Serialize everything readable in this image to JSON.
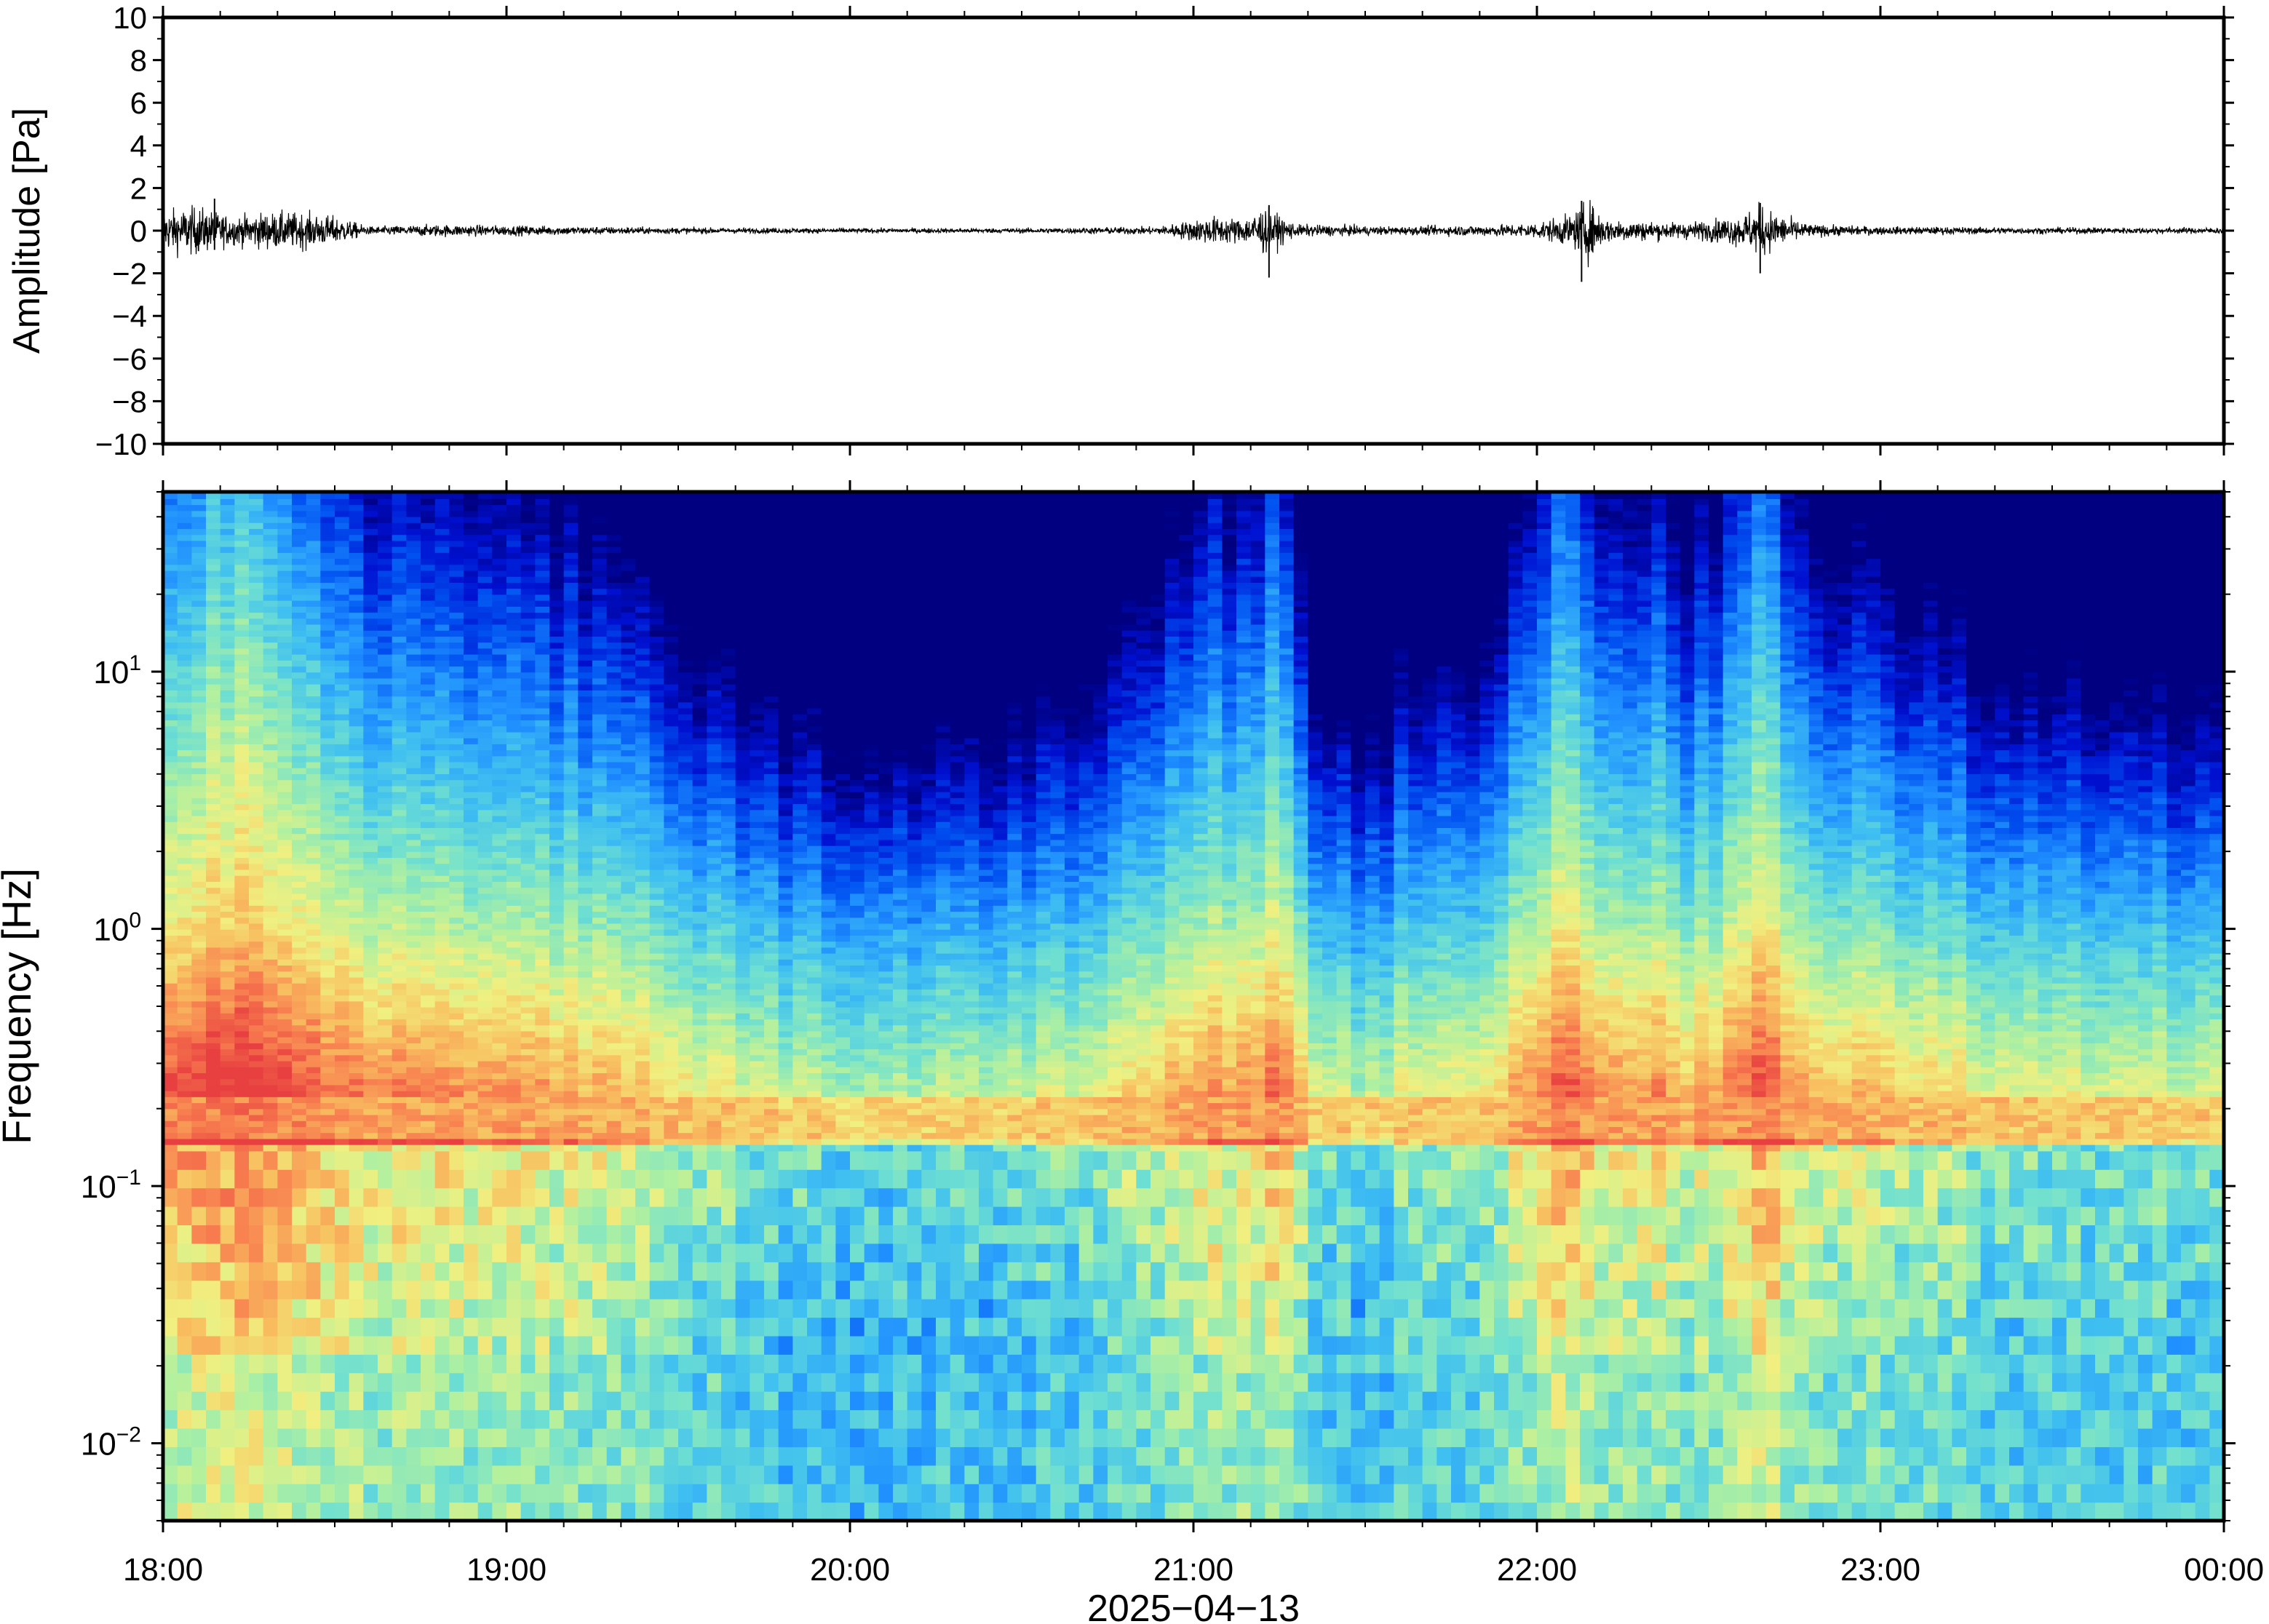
{
  "chart_data": [
    {
      "type": "line",
      "panel": "waveform",
      "ylabel": "Amplitude [Pa]",
      "xlabel": "",
      "ylim": [
        -10,
        10
      ],
      "yticks": [
        -10,
        -8,
        -6,
        -4,
        -2,
        0,
        2,
        4,
        6,
        8,
        10
      ],
      "ytick_labels": [
        "−10",
        "−8",
        "−6",
        "−4",
        "−2",
        "0",
        "2",
        "4",
        "6",
        "8",
        "10"
      ],
      "xlim_hours": [
        18,
        24
      ],
      "line_color": "#000000",
      "envelope": {
        "x_hours": [
          18.0,
          18.1,
          18.2,
          18.3,
          18.4,
          18.5,
          18.6,
          18.8,
          19.0,
          19.5,
          20.0,
          20.5,
          20.9,
          21.05,
          21.15,
          21.2,
          21.3,
          21.6,
          21.9,
          22.0,
          22.1,
          22.15,
          22.2,
          22.4,
          22.5,
          22.6,
          22.65,
          22.7,
          22.8,
          23.0,
          23.5,
          24.0
        ],
        "amplitude": [
          1.0,
          1.2,
          0.7,
          0.9,
          0.9,
          0.7,
          0.2,
          0.3,
          0.25,
          0.15,
          0.12,
          0.12,
          0.2,
          0.7,
          0.6,
          1.2,
          0.3,
          0.2,
          0.3,
          0.4,
          0.8,
          1.5,
          0.6,
          0.4,
          0.5,
          0.8,
          1.3,
          0.8,
          0.3,
          0.2,
          0.15,
          0.15
        ]
      },
      "spikes": [
        {
          "x_hours": 21.22,
          "min": -2.2,
          "max": 1.2
        },
        {
          "x_hours": 22.13,
          "min": -2.4,
          "max": 1.4
        },
        {
          "x_hours": 22.65,
          "min": -2.0,
          "max": 1.3
        },
        {
          "x_hours": 18.15,
          "min": -0.9,
          "max": 1.5
        }
      ]
    },
    {
      "type": "heatmap",
      "panel": "spectrogram",
      "ylabel": "Frequency [Hz]",
      "xlabel": "2025−04−13",
      "yscale": "log",
      "ylim_hz": [
        0.005,
        50
      ],
      "yticks": [
        {
          "value": 0.01,
          "base": "10",
          "exp": "−2"
        },
        {
          "value": 0.1,
          "base": "10",
          "exp": "−1"
        },
        {
          "value": 1,
          "base": "10",
          "exp": "0"
        },
        {
          "value": 10,
          "base": "10",
          "exp": "1"
        }
      ],
      "xticks": [
        {
          "value": 18,
          "label": "18:00"
        },
        {
          "value": 19,
          "label": "19:00"
        },
        {
          "value": 20,
          "label": "20:00"
        },
        {
          "value": 21,
          "label": "21:00"
        },
        {
          "value": 22,
          "label": "22:00"
        },
        {
          "value": 23,
          "label": "23:00"
        },
        {
          "value": 24,
          "label": "00:00"
        }
      ],
      "colormap": "jet",
      "colormap_stops": [
        "#000080",
        "#0010d0",
        "#0050f0",
        "#2090ff",
        "#40c0f0",
        "#70e0d0",
        "#b0f0a0",
        "#f0f080",
        "#f8c060",
        "#f88050",
        "#e84040"
      ],
      "microbarom_band_hz": [
        0.15,
        0.22
      ],
      "column_activity": {
        "x_hours": [
          18.0,
          18.3,
          18.6,
          18.9,
          19.2,
          19.5,
          19.8,
          20.1,
          20.4,
          20.7,
          20.9,
          21.05,
          21.15,
          21.25,
          21.35,
          21.5,
          21.7,
          21.85,
          22.0,
          22.1,
          22.2,
          22.3,
          22.45,
          22.55,
          22.65,
          22.75,
          22.9,
          23.1,
          23.3,
          23.5,
          23.7,
          23.9,
          24.0
        ],
        "level": [
          0.72,
          0.76,
          0.62,
          0.58,
          0.55,
          0.45,
          0.35,
          0.32,
          0.33,
          0.38,
          0.5,
          0.62,
          0.55,
          0.65,
          0.38,
          0.32,
          0.45,
          0.42,
          0.62,
          0.7,
          0.55,
          0.6,
          0.52,
          0.6,
          0.7,
          0.55,
          0.5,
          0.48,
          0.42,
          0.4,
          0.38,
          0.36,
          0.36
        ]
      }
    }
  ]
}
